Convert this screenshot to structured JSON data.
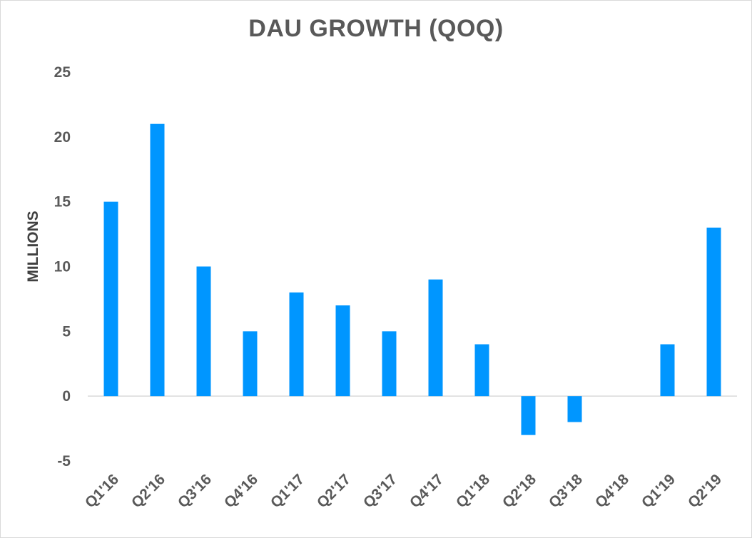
{
  "chart_data": {
    "type": "bar",
    "title": "DAU GROWTH  (QOQ)",
    "xlabel": "",
    "ylabel": "MILLIONS",
    "categories": [
      "Q1'16",
      "Q2'16",
      "Q3'16",
      "Q4'16",
      "Q1'17",
      "Q2'17",
      "Q3'17",
      "Q4'17",
      "Q1'18",
      "Q2'18",
      "Q3'18",
      "Q4'18",
      "Q1'19",
      "Q2'19"
    ],
    "values": [
      15,
      21,
      10,
      5,
      8,
      7,
      5,
      9,
      4,
      -3,
      -2,
      0,
      4,
      13
    ],
    "yticks": [
      "25",
      "20",
      "15",
      "10",
      "5",
      "0",
      "-5"
    ],
    "ylim": [
      -5,
      25
    ],
    "grid": false,
    "legend": "none",
    "colors": {
      "bar": "#0096FF",
      "text": "#595959",
      "axis_line": "#d9d9d9"
    }
  }
}
